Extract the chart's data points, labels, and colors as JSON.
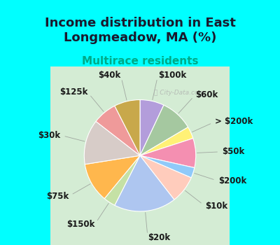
{
  "title": "Income distribution in East\nLongmeadow, MA (%)",
  "subtitle": "Multirace residents",
  "watermark": "City-Data.com",
  "background_color": "#00FFFF",
  "chart_bg_start": "#e8f5e9",
  "chart_bg_end": "#d0ece7",
  "slices": [
    {
      "label": "$100k",
      "value": 7.0,
      "color": "#b39ddb"
    },
    {
      "label": "$60k",
      "value": 9.5,
      "color": "#a5c8a0"
    },
    {
      "label": "> $200k",
      "value": 3.5,
      "color": "#fff176"
    },
    {
      "label": "$50k",
      "value": 8.5,
      "color": "#f48fb1"
    },
    {
      "label": "$200k",
      "value": 3.0,
      "color": "#90caf9"
    },
    {
      "label": "$10k",
      "value": 8.0,
      "color": "#ffccbc"
    },
    {
      "label": "$20k",
      "value": 18.0,
      "color": "#90caf9"
    },
    {
      "label": "$150k",
      "value": 3.5,
      "color": "#c5e1a5"
    },
    {
      "label": "$75k",
      "value": 11.5,
      "color": "#ffb74d"
    },
    {
      "label": "$30k",
      "value": 13.0,
      "color": "#d7ccc8"
    },
    {
      "label": "$125k",
      "value": 7.0,
      "color": "#ef9a9a"
    },
    {
      "label": "$40k",
      "value": 7.5,
      "color": "#c8a84b"
    }
  ],
  "label_fontsize": 8.5,
  "title_fontsize": 13,
  "subtitle_fontsize": 11,
  "title_color": "#1a1a2e",
  "subtitle_color": "#00aa88"
}
